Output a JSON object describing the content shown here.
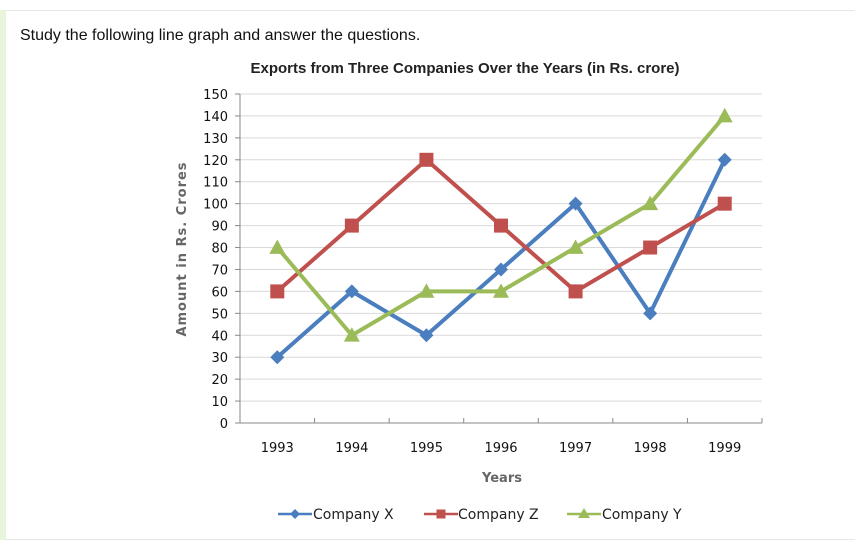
{
  "question": {
    "instruction": "Study the following line graph and answer the questions."
  },
  "chart_data": {
    "type": "line",
    "title": "Exports from Three Companies Over the Years (in Rs. crore)",
    "xlabel": "Years",
    "ylabel": "Amount in Rs. Crores",
    "categories": [
      "1993",
      "1994",
      "1995",
      "1996",
      "1997",
      "1998",
      "1999"
    ],
    "ylim": [
      0,
      150
    ],
    "ytick_step": 10,
    "grid": true,
    "legend_position": "bottom",
    "series": [
      {
        "name": "Company X",
        "values": [
          30,
          60,
          40,
          70,
          100,
          50,
          120
        ],
        "color": "#4a7ebf",
        "marker": "diamond"
      },
      {
        "name": "Company Z",
        "values": [
          60,
          90,
          120,
          90,
          60,
          80,
          100
        ],
        "color": "#c0504d",
        "marker": "square"
      },
      {
        "name": "Company Y",
        "values": [
          80,
          40,
          60,
          60,
          80,
          100,
          140
        ],
        "color": "#9bbb59",
        "marker": "triangle"
      }
    ]
  }
}
